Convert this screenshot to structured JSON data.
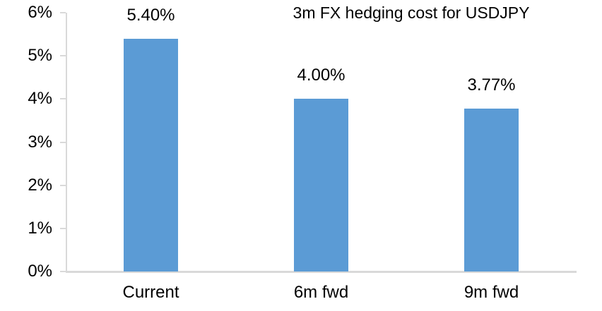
{
  "chart_data": {
    "type": "bar",
    "title": "3m FX hedging cost for USDJPY",
    "categories": [
      "Current",
      "6m fwd",
      "9m fwd"
    ],
    "values": [
      5.4,
      4.0,
      3.77
    ],
    "value_labels": [
      "5.40%",
      "4.00%",
      "3.77%"
    ],
    "ylim": [
      0,
      6
    ],
    "ytick_labels": [
      "0%",
      "1%",
      "2%",
      "3%",
      "4%",
      "5%",
      "6%"
    ],
    "xlabel": "",
    "ylabel": "",
    "grid": false,
    "legend": "none",
    "bar_color": "#5b9bd5",
    "axis_color": "#d9d9d9",
    "text_color": "#000000",
    "background_color": "#ffffff"
  }
}
